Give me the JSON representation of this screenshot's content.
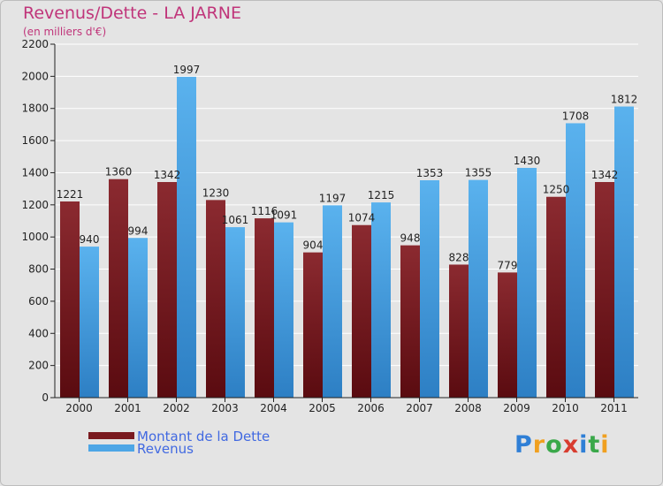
{
  "chart_data": {
    "type": "bar",
    "title": "Revenus/Dette - LA JARNE",
    "subtitle": "(en milliers d'€)",
    "categories": [
      "2000",
      "2001",
      "2002",
      "2003",
      "2004",
      "2005",
      "2006",
      "2007",
      "2008",
      "2009",
      "2010",
      "2011"
    ],
    "series": [
      {
        "name": "Montant de la Dette",
        "color": "#7a1a1f",
        "values": [
          1221,
          1360,
          1342,
          1230,
          1116,
          904,
          1074,
          948,
          828,
          779,
          1250,
          1342
        ],
        "labels": [
          "1221",
          "1360",
          "1342",
          "1230",
          "1116",
          "904",
          "1074",
          "948",
          "828",
          "779",
          "1250",
          "1342"
        ]
      },
      {
        "name": "Revenus",
        "color": "#4da6e6",
        "values": [
          940,
          994,
          1997,
          1061,
          1091,
          1197,
          1215,
          1353,
          1355,
          1430,
          1708,
          1812
        ],
        "labels": [
          "940",
          "994",
          "1997",
          "1061",
          "1091",
          "1197",
          "1215",
          "1353",
          "1355",
          "1430",
          "1708",
          "1812"
        ]
      }
    ],
    "ylim": [
      0,
      2200
    ],
    "yticks": [
      0,
      200,
      400,
      600,
      800,
      1000,
      1200,
      1400,
      1600,
      1800,
      2000,
      2200
    ],
    "grid": true,
    "legend": "bottom-left"
  },
  "logo": {
    "text": "Proxiti",
    "letters": [
      "P",
      "r",
      "o",
      "x",
      "i",
      "t",
      "i"
    ],
    "colors": [
      "#2f7fd6",
      "#f0a020",
      "#3aa84a",
      "#d83c2f",
      "#2f7fd6",
      "#3aa84a",
      "#f0a020"
    ]
  }
}
